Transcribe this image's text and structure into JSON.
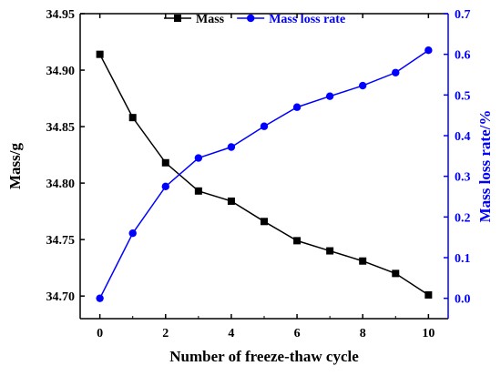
{
  "chart_data": {
    "type": "line",
    "xlabel": "Number of freeze-thaw cycle",
    "ylabel_left": "Mass/g",
    "ylabel_right": "Mass loss rate/%",
    "x": [
      0,
      1,
      2,
      3,
      4,
      5,
      6,
      7,
      8,
      9,
      10
    ],
    "xlim": [
      -0.6,
      10.6
    ],
    "x_ticks": [
      "0",
      "2",
      "4",
      "6",
      "8",
      "10"
    ],
    "y_left_lim": [
      34.68,
      34.95
    ],
    "y_left_ticks": [
      "34.70",
      "34.75",
      "34.80",
      "34.85",
      "34.90",
      "34.95"
    ],
    "y_right_lim": [
      -0.05,
      0.7
    ],
    "y_right_ticks": [
      "0.0",
      "0.1",
      "0.2",
      "0.3",
      "0.4",
      "0.5",
      "0.6",
      "0.7"
    ],
    "legend_position": "top",
    "series": [
      {
        "name": "Mass",
        "axis": "left",
        "marker": "square",
        "color": "#000000",
        "values": [
          34.914,
          34.858,
          34.818,
          34.793,
          34.784,
          34.766,
          34.749,
          34.74,
          34.731,
          34.72,
          34.701
        ]
      },
      {
        "name": "Mass loss rate",
        "axis": "right",
        "marker": "circle",
        "color": "#0000ff",
        "values": [
          0.0,
          0.16,
          0.275,
          0.345,
          0.372,
          0.423,
          0.47,
          0.497,
          0.523,
          0.555,
          0.61
        ]
      }
    ]
  }
}
